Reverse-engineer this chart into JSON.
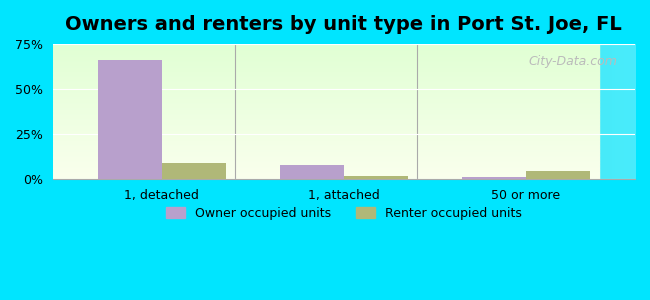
{
  "title": "Owners and renters by unit type in Port St. Joe, FL",
  "categories": [
    "1, detached",
    "1, attached",
    "50 or more"
  ],
  "owner_values": [
    66.0,
    8.0,
    1.5
  ],
  "renter_values": [
    9.0,
    2.0,
    4.5
  ],
  "owner_color": "#b8a0cc",
  "renter_color": "#b0b878",
  "ylim": [
    0,
    75
  ],
  "yticks": [
    0,
    25,
    50,
    75
  ],
  "ytick_labels": [
    "0%",
    "25%",
    "50%",
    "75%"
  ],
  "background_top": "#e8f5e8",
  "background_bottom": "#f0ffe8",
  "outer_bg": "#00e5ff",
  "watermark": "City-Data.com",
  "legend_owner": "Owner occupied units",
  "legend_renter": "Renter occupied units",
  "bar_width": 0.35,
  "title_fontsize": 14
}
